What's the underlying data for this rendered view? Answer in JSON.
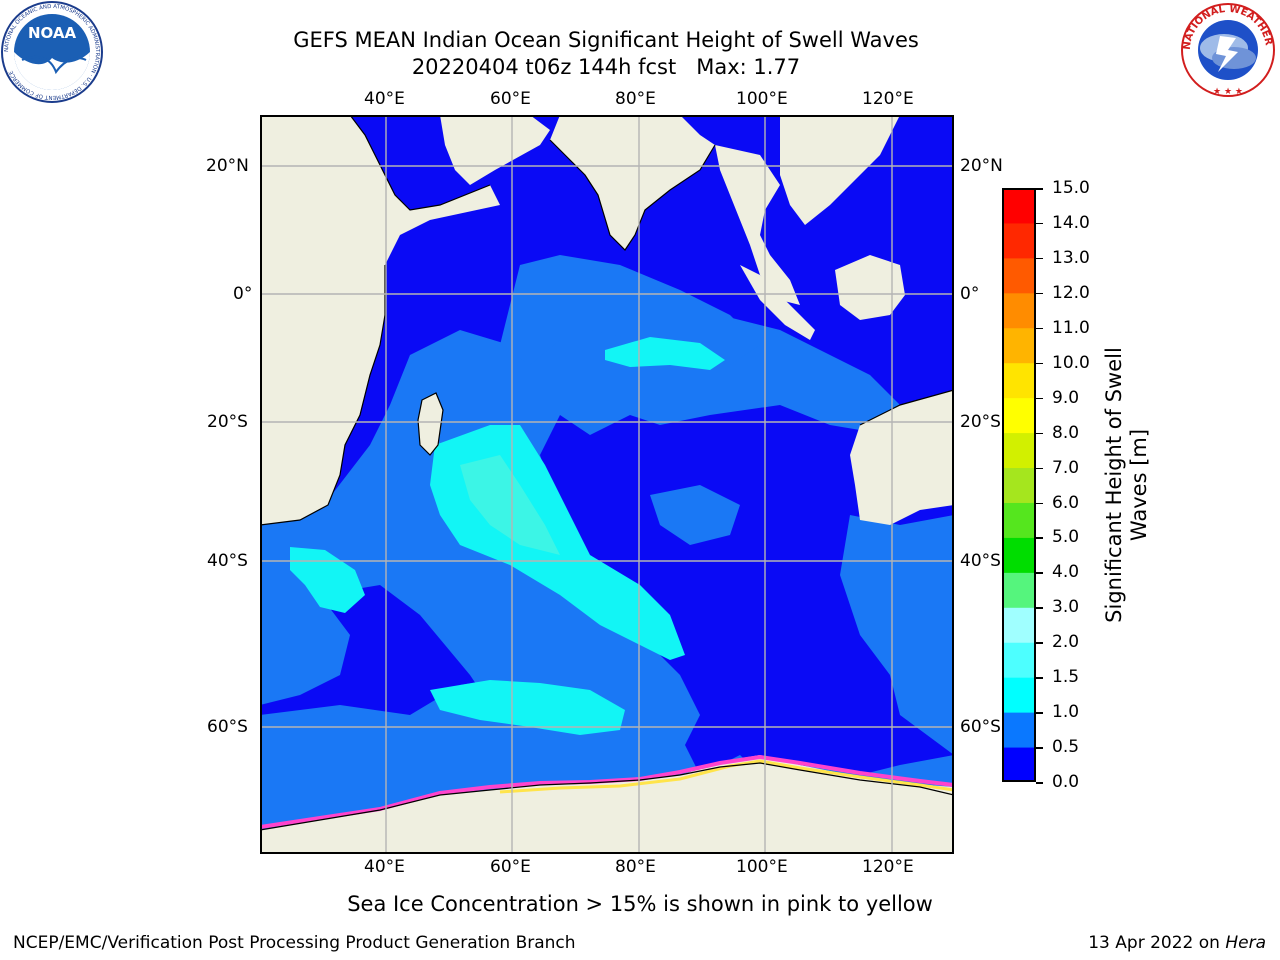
{
  "title": {
    "line1": "GEFS MEAN Indian Ocean Significant Height of Swell Waves",
    "line2": "20220404 t06z 144h fcst   Max: 1.77"
  },
  "logos": {
    "noaa": {
      "text": "NOAA",
      "ring_text": "NATIONAL OCEANIC AND ATMOSPHERIC ADMINISTRATION · U.S. DEPARTMENT OF COMMERCE"
    },
    "nws": {
      "ring_text": "NATIONAL WEATHER SERVICE"
    }
  },
  "map": {
    "lon_ticks": [
      "40°E",
      "60°E",
      "80°E",
      "100°E",
      "120°E"
    ],
    "lat_ticks": [
      "20°N",
      "0°",
      "20°S",
      "40°S",
      "60°S"
    ],
    "colors": {
      "land": "#efefe0",
      "ocean_low": "#0a0af5",
      "ocean_mid": "#1a78f5",
      "ocean_high": "#12f5f5",
      "ocean_higher": "#3cf5e6",
      "sea_ice_pink": "#ff44cc",
      "sea_ice_yellow": "#ffe44a",
      "grid": "#b4b4b4"
    }
  },
  "colorbar": {
    "label": "Significant Height of Swell\nWaves [m]",
    "ticks": [
      "15.0",
      "14.0",
      "13.0",
      "12.0",
      "11.0",
      "10.0",
      "9.0",
      "8.0",
      "7.0",
      "6.0",
      "5.0",
      "4.0",
      "3.0",
      "2.0",
      "1.5",
      "1.0",
      "0.5",
      "0.0"
    ],
    "colors_bottom_to_top": [
      "#0000ff",
      "#0a78ff",
      "#00ffff",
      "#4dffff",
      "#a0ffff",
      "#55f57d",
      "#00dd00",
      "#55e61e",
      "#a5e61e",
      "#d2f000",
      "#ffff00",
      "#ffe400",
      "#ffb400",
      "#ff8c00",
      "#ff5a00",
      "#ff2800",
      "#ff0000"
    ]
  },
  "footer": {
    "caption": "Sea Ice Concentration > 15% is shown in pink to yellow",
    "left": "NCEP/EMC/Verification Post Processing Product Generation Branch",
    "date": "13 Apr 2022 on ",
    "machine": "Hera"
  }
}
